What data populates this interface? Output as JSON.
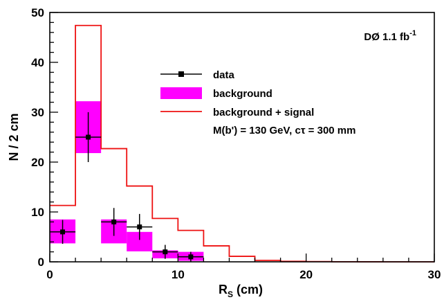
{
  "chart_data": {
    "type": "histogram",
    "title": "",
    "xlabel": {
      "main": "R",
      "sub": "S",
      "unit": " (cm)"
    },
    "ylabel": "N / 2 cm",
    "xlim": [
      0,
      30
    ],
    "ylim": [
      0,
      50
    ],
    "x_ticks": [
      0,
      10,
      20,
      30
    ],
    "x_tick_labels": [
      "0",
      "10",
      "20",
      "30"
    ],
    "y_ticks": [
      0,
      10,
      20,
      30,
      40,
      50
    ],
    "y_tick_labels": [
      "0",
      "10",
      "20",
      "30",
      "40",
      "50"
    ],
    "bin_width": 2,
    "annotation": {
      "text": "DØ 1.1 fb",
      "superscript": "-1"
    },
    "legend": {
      "position": "upper-center",
      "entries": [
        {
          "label": "data",
          "style": "marker-errorbar"
        },
        {
          "label": "background",
          "style": "band"
        },
        {
          "label": "background + signal",
          "style": "line"
        }
      ],
      "note": "M(b') = 130 GeV, cτ = 300 mm"
    },
    "series": [
      {
        "name": "data",
        "kind": "points",
        "color": "#000000",
        "x": [
          1,
          3,
          5,
          7,
          9,
          11
        ],
        "y": [
          6,
          25,
          8,
          7,
          2,
          1
        ],
        "yerr_low": [
          2.4,
          5,
          2.8,
          2.6,
          1.4,
          1
        ],
        "yerr_high": [
          2.4,
          5,
          2.8,
          2.6,
          1.4,
          1
        ]
      },
      {
        "name": "background",
        "kind": "band",
        "color": "#ff00ff",
        "bins": [
          {
            "x0": 0,
            "x1": 2,
            "low": 3.7,
            "high": 8.5
          },
          {
            "x0": 2,
            "x1": 4,
            "low": 21.8,
            "high": 32.2
          },
          {
            "x0": 4,
            "x1": 6,
            "low": 3.7,
            "high": 8.5
          },
          {
            "x0": 6,
            "x1": 8,
            "low": 2.1,
            "high": 6.0
          },
          {
            "x0": 8,
            "x1": 10,
            "low": 0.7,
            "high": 2.3
          },
          {
            "x0": 10,
            "x1": 12,
            "low": 0.2,
            "high": 2.0
          }
        ]
      },
      {
        "name": "background + signal",
        "kind": "step",
        "color": "#ee1111",
        "edges": [
          0,
          2,
          4,
          6,
          8,
          10,
          12,
          14,
          16,
          18,
          20,
          22,
          24,
          26,
          28,
          30
        ],
        "values": [
          11.3,
          47.4,
          22.7,
          15.2,
          8.7,
          6.3,
          3.2,
          1.1,
          0.3,
          0.1,
          0.05,
          0.02,
          0.01,
          0,
          0
        ]
      }
    ]
  }
}
